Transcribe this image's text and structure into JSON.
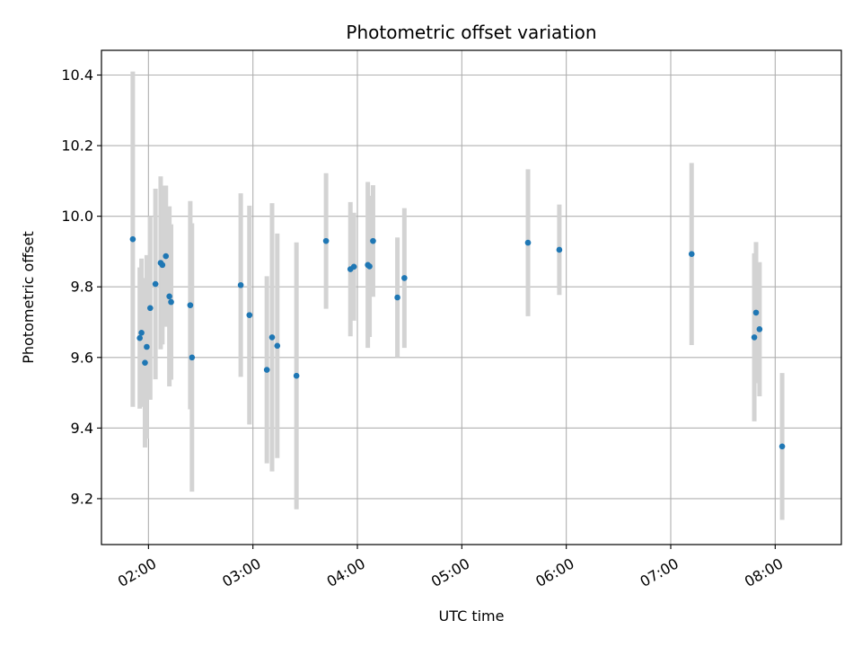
{
  "chart_data": {
    "type": "scatter",
    "title": "Photometric offset variation",
    "xlabel": "UTC time",
    "ylabel": "Photometric offset",
    "x_is_time": true,
    "xlim": [
      "01:33",
      "08:38"
    ],
    "ylim": [
      9.07,
      10.47
    ],
    "xticks": [
      "02:00",
      "03:00",
      "04:00",
      "05:00",
      "06:00",
      "07:00",
      "08:00"
    ],
    "yticks": [
      "9.2",
      "9.4",
      "9.6",
      "9.8",
      "10.0",
      "10.2",
      "10.4"
    ],
    "grid": true,
    "colors": {
      "point": "#1f77b4",
      "errorbar": "#d3d3d3",
      "grid": "#b0b0b0"
    },
    "series": [
      {
        "points": [
          {
            "x": "01:51",
            "y": 9.935,
            "err": 0.475
          },
          {
            "x": "01:55",
            "y": 9.655,
            "err": 0.2
          },
          {
            "x": "01:56",
            "y": 9.67,
            "err": 0.21
          },
          {
            "x": "01:58",
            "y": 9.585,
            "err": 0.24
          },
          {
            "x": "01:59",
            "y": 9.63,
            "err": 0.26
          },
          {
            "x": "02:01",
            "y": 9.74,
            "err": 0.26
          },
          {
            "x": "02:04",
            "y": 9.808,
            "err": 0.27
          },
          {
            "x": "02:07",
            "y": 9.868,
            "err": 0.245
          },
          {
            "x": "02:08",
            "y": 9.862,
            "err": 0.225
          },
          {
            "x": "02:10",
            "y": 9.887,
            "err": 0.2
          },
          {
            "x": "02:12",
            "y": 9.773,
            "err": 0.255
          },
          {
            "x": "02:13",
            "y": 9.757,
            "err": 0.22
          },
          {
            "x": "02:24",
            "y": 9.748,
            "err": 0.295
          },
          {
            "x": "02:25",
            "y": 9.6,
            "err": 0.38
          },
          {
            "x": "02:53",
            "y": 9.805,
            "err": 0.26
          },
          {
            "x": "02:58",
            "y": 9.72,
            "err": 0.31
          },
          {
            "x": "03:08",
            "y": 9.565,
            "err": 0.265
          },
          {
            "x": "03:11",
            "y": 9.657,
            "err": 0.38
          },
          {
            "x": "03:14",
            "y": 9.633,
            "err": 0.318
          },
          {
            "x": "03:25",
            "y": 9.548,
            "err": 0.378
          },
          {
            "x": "03:42",
            "y": 9.93,
            "err": 0.192
          },
          {
            "x": "03:56",
            "y": 9.85,
            "err": 0.19
          },
          {
            "x": "03:58",
            "y": 9.857,
            "err": 0.153
          },
          {
            "x": "04:06",
            "y": 9.862,
            "err": 0.235
          },
          {
            "x": "04:07",
            "y": 9.858,
            "err": 0.2
          },
          {
            "x": "04:09",
            "y": 9.93,
            "err": 0.158
          },
          {
            "x": "04:23",
            "y": 9.77,
            "err": 0.17
          },
          {
            "x": "04:27",
            "y": 9.825,
            "err": 0.198
          },
          {
            "x": "05:38",
            "y": 9.925,
            "err": 0.208
          },
          {
            "x": "05:56",
            "y": 9.905,
            "err": 0.128
          },
          {
            "x": "07:12",
            "y": 9.893,
            "err": 0.258
          },
          {
            "x": "07:48",
            "y": 9.657,
            "err": 0.238
          },
          {
            "x": "07:49",
            "y": 9.727,
            "err": 0.2
          },
          {
            "x": "07:51",
            "y": 9.68,
            "err": 0.19
          },
          {
            "x": "08:04",
            "y": 9.348,
            "err": 0.208
          }
        ]
      }
    ]
  }
}
